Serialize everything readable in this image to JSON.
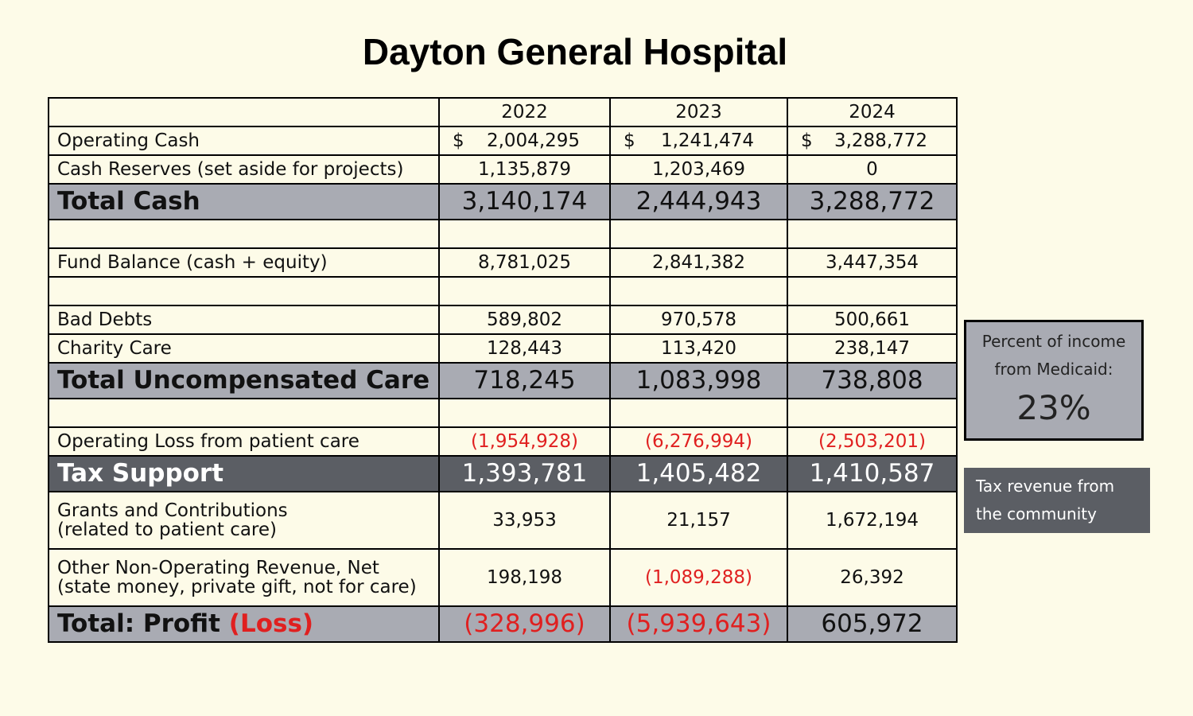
{
  "title": "Dayton General Hospital",
  "colors": {
    "background": "#fdfbe8",
    "total_row": "#a9abb3",
    "tax_row": "#5b5e64",
    "negative": "#e02020"
  },
  "chart_data": {
    "type": "table",
    "title": "Dayton General Hospital",
    "columns": [
      "2022",
      "2023",
      "2024"
    ],
    "rows": [
      {
        "key": "operating_cash",
        "label": "Operating Cash",
        "currency": "$",
        "values": [
          "2,004,295",
          "1,241,474",
          "3,288,772"
        ]
      },
      {
        "key": "cash_reserves",
        "label": "Cash Reserves (set aside for projects)",
        "values": [
          "1,135,879",
          "1,203,469",
          "0"
        ]
      },
      {
        "key": "total_cash",
        "label": "Total Cash",
        "values": [
          "3,140,174",
          "2,444,943",
          "3,288,772"
        ]
      },
      {
        "key": "fund_balance",
        "label": "Fund Balance (cash + equity)",
        "values": [
          "8,781,025",
          "2,841,382",
          "3,447,354"
        ]
      },
      {
        "key": "bad_debts",
        "label": "Bad Debts",
        "values": [
          "589,802",
          "970,578",
          "500,661"
        ]
      },
      {
        "key": "charity_care",
        "label": "Charity Care",
        "values": [
          "128,443",
          "113,420",
          "238,147"
        ]
      },
      {
        "key": "total_uncompensated",
        "label": "Total Uncompensated Care",
        "values": [
          "718,245",
          "1,083,998",
          "738,808"
        ]
      },
      {
        "key": "operating_loss",
        "label": "Operating Loss from patient care",
        "values": [
          "(1,954,928)",
          "(6,276,994)",
          "(2,503,201)"
        ]
      },
      {
        "key": "tax_support",
        "label": "Tax Support",
        "values": [
          "1,393,781",
          "1,405,482",
          "1,410,587"
        ]
      },
      {
        "key": "grants",
        "label_line1": "Grants and Contributions",
        "label_line2": "(related to patient care)",
        "values": [
          "33,953",
          "21,157",
          "1,672,194"
        ]
      },
      {
        "key": "other_nonop",
        "label_line1": "Other Non-Operating Revenue, Net",
        "label_line2": "(state money, private gift, not for care)",
        "values": [
          "198,198",
          "(1,089,288)",
          "26,392"
        ]
      },
      {
        "key": "total_profit",
        "label_prefix": "Total:  Profit",
        "label_loss": "(Loss)",
        "values": [
          "(328,996)",
          "(5,939,643)",
          "605,972"
        ]
      }
    ]
  },
  "medicaid_box": {
    "line1": "Percent of income",
    "line2": "from Medicaid:",
    "value": "23%"
  },
  "tax_box": {
    "line1": "Tax revenue from",
    "line2": "the community"
  }
}
